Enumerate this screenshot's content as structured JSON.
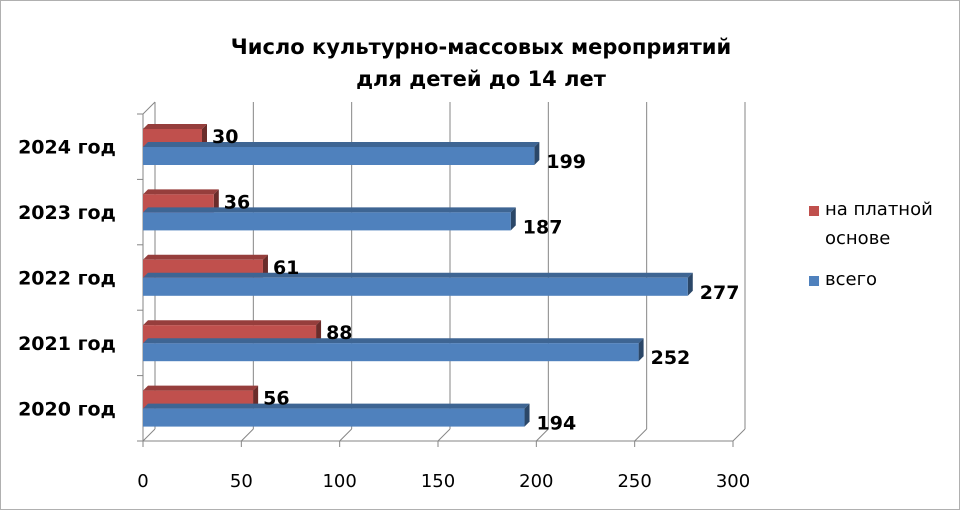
{
  "chart_data": {
    "type": "bar",
    "orientation": "horizontal",
    "title_line1": "Число культурно-массовых мероприятий",
    "title_line2": "для детей до 14 лет",
    "categories": [
      "2020 год",
      "2021 год",
      "2022 год",
      "2023 год",
      "2024 год"
    ],
    "series": [
      {
        "name": "всего",
        "color": "#4f81bd",
        "values": [
          194,
          252,
          277,
          187,
          199
        ]
      },
      {
        "name": "на платной основе",
        "color": "#c0504d",
        "values": [
          56,
          88,
          61,
          36,
          30
        ]
      }
    ],
    "xlim": [
      0,
      300
    ],
    "xticks": [
      "0",
      "50",
      "100",
      "150",
      "200",
      "250",
      "300"
    ],
    "grid": true,
    "legend_position": "right",
    "legend": [
      {
        "line1": "на платной",
        "line2": "основе",
        "color": "#c0504d"
      },
      {
        "line1": "всего",
        "line2": "",
        "color": "#4f81bd"
      }
    ]
  }
}
